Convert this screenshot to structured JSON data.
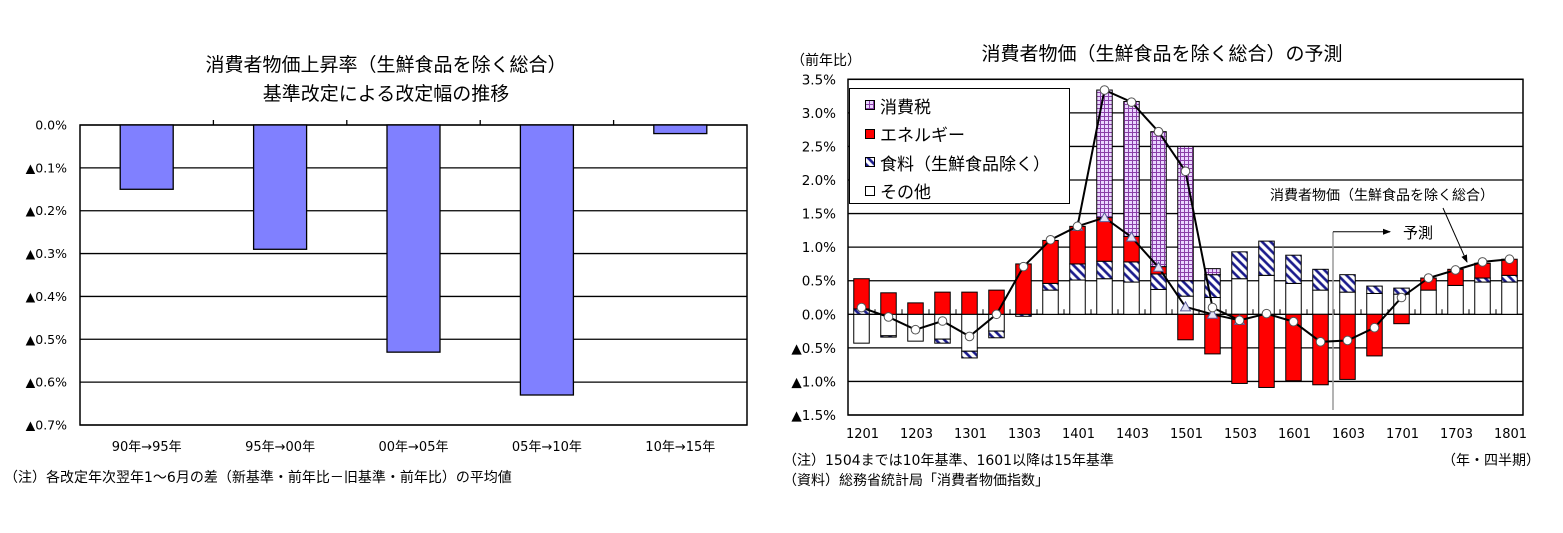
{
  "left_chart": {
    "title_line1": "消費者物価上昇率（生鮮食品を除く総合）",
    "title_line2": "基準改定による改定幅の推移",
    "note": "（注）各改定年次翌年1～6月の差（新基準・前年比－旧基準・前年比）の平均値"
  },
  "right_chart": {
    "title": "消費者物価（生鮮食品を除く総合）の予測",
    "y_unit": "（前年比）",
    "x_unit": "（年・四半期）",
    "note1": "（注）1504までは10年基準、1601以降は15年基準",
    "note2": "（資料）総務省統計局「消費者物価指数」",
    "annotation_line": "消費者物価（生鮮食品を除く総合）",
    "annotation_forecast": "予測"
  },
  "colors": {
    "left_bar": "#8080ff",
    "energy": "#ff0000",
    "food_hatch": "#1a1a8c",
    "tax_grid_bg": "#ead6ff",
    "tax_grid_line": "#8a3fa8",
    "other": "#ffffff",
    "forecast_line": "#9a9a9a"
  },
  "chart_data": [
    {
      "type": "bar",
      "title": "消費者物価上昇率（生鮮食品を除く総合） 基準改定による改定幅の推移",
      "xlabel": "",
      "ylabel": "",
      "categories": [
        "90年→95年",
        "95年→00年",
        "00年→05年",
        "05年→10年",
        "10年→15年"
      ],
      "values": [
        -0.15,
        -0.29,
        -0.53,
        -0.63,
        -0.02
      ],
      "ylim": [
        -0.7,
        0.0
      ],
      "yticks": [
        0.0,
        -0.1,
        -0.2,
        -0.3,
        -0.4,
        -0.5,
        -0.6,
        -0.7
      ],
      "ytick_labels": [
        "0.0%",
        "▲0.1%",
        "▲0.2%",
        "▲0.3%",
        "▲0.4%",
        "▲0.5%",
        "▲0.6%",
        "▲0.7%"
      ],
      "grid": true,
      "legend": null,
      "note": "（注）各改定年次翌年1～6月の差（新基準・前年比－旧基準・前年比）の平均値"
    },
    {
      "type": "bar",
      "stacked": true,
      "title": "消費者物価（生鮮食品を除く総合）の予測",
      "xlabel": "（年・四半期）",
      "ylabel": "（前年比）",
      "ylim": [
        -1.5,
        3.5
      ],
      "yticks": [
        3.5,
        3.0,
        2.5,
        2.0,
        1.5,
        1.0,
        0.5,
        0.0,
        -0.5,
        -1.0,
        -1.5
      ],
      "ytick_labels": [
        "3.5%",
        "3.0%",
        "2.5%",
        "2.0%",
        "1.5%",
        "1.0%",
        "0.5%",
        "0.0%",
        "▲0.5%",
        "▲1.0%",
        "▲1.5%"
      ],
      "grid": true,
      "legend_position": "upper-left",
      "categories": [
        "1201",
        "1202",
        "1203",
        "1204",
        "1301",
        "1302",
        "1303",
        "1304",
        "1401",
        "1402",
        "1403",
        "1404",
        "1501",
        "1502",
        "1503",
        "1504",
        "1601",
        "1602",
        "1603",
        "1604",
        "1701",
        "1702",
        "1703",
        "1704",
        "1801"
      ],
      "xtick_labels": [
        "1201",
        "1203",
        "1301",
        "1303",
        "1401",
        "1403",
        "1501",
        "1503",
        "1601",
        "1603",
        "1701",
        "1703",
        "1801"
      ],
      "forecast_start": "1603",
      "series": [
        {
          "name": "消費税",
          "type": "bar",
          "fill": "grid",
          "values": [
            0,
            0,
            0,
            0,
            0,
            0,
            0,
            0,
            0,
            1.9,
            2.01,
            2.01,
            2.0,
            0.09,
            0,
            0,
            0,
            0,
            0,
            0,
            0,
            0,
            0,
            0,
            0
          ]
        },
        {
          "name": "エネルギー",
          "type": "bar",
          "fill": "red",
          "values": [
            0.45,
            0.32,
            0.17,
            0.33,
            0.33,
            0.36,
            0.75,
            0.64,
            0.56,
            0.65,
            0.38,
            0.11,
            -0.38,
            -0.59,
            -1.03,
            -1.09,
            -0.99,
            -1.05,
            -0.97,
            -0.62,
            -0.14,
            0.18,
            0.24,
            0.22,
            0.24
          ]
        },
        {
          "name": "食料（生鮮食品除く）",
          "type": "bar",
          "fill": "hatch",
          "values": [
            0.08,
            -0.02,
            0,
            -0.06,
            -0.1,
            -0.1,
            -0.03,
            0.1,
            0.24,
            0.26,
            0.3,
            0.23,
            0.23,
            0.34,
            0.4,
            0.51,
            0.42,
            0.31,
            0.26,
            0.11,
            0.09,
            0,
            0,
            0.06,
            0.1
          ]
        },
        {
          "name": "その他",
          "type": "bar",
          "fill": "white",
          "values": [
            -0.43,
            -0.32,
            -0.4,
            -0.37,
            -0.55,
            -0.25,
            0,
            0.36,
            0.51,
            0.53,
            0.48,
            0.37,
            0.27,
            0.25,
            0.53,
            0.58,
            0.46,
            0.36,
            0.33,
            0.31,
            0.3,
            0.36,
            0.43,
            0.48,
            0.48
          ]
        },
        {
          "name": "消費者物価（生鮮食品を除く総合）",
          "type": "line",
          "marker": "circle",
          "values": [
            0.1,
            -0.04,
            -0.23,
            -0.1,
            -0.33,
            0.0,
            0.71,
            1.11,
            1.31,
            3.34,
            3.16,
            2.72,
            2.13,
            0.1,
            -0.09,
            0.01,
            -0.11,
            -0.41,
            -0.39,
            -0.2,
            0.25,
            0.54,
            0.66,
            0.78,
            0.82
          ]
        },
        {
          "name": "",
          "type": "line",
          "marker": "triangle",
          "values": [
            null,
            null,
            null,
            null,
            null,
            null,
            null,
            null,
            1.31,
            1.44,
            1.15,
            0.7,
            0.11,
            0.0,
            -0.09,
            null,
            null,
            null,
            null,
            null,
            null,
            null,
            null,
            null,
            null
          ]
        }
      ],
      "annotations": [
        {
          "text": "消費者物価（生鮮食品を除く総合）",
          "points_to": "1703"
        },
        {
          "text": "予測",
          "arrow_from": "1603"
        }
      ],
      "notes": [
        "（注）1504までは10年基準、1601以降は15年基準",
        "（資料）総務省統計局「消費者物価指数」"
      ]
    }
  ]
}
